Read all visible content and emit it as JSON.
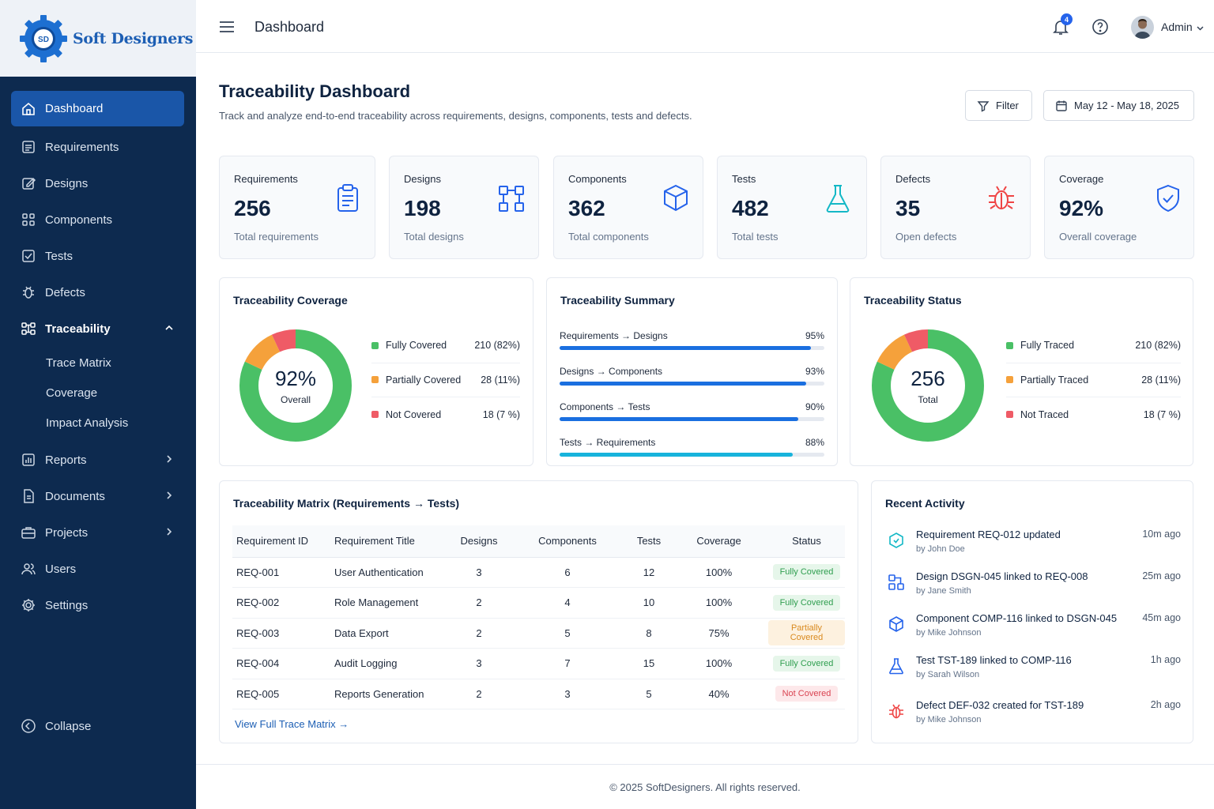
{
  "brand": {
    "name": "Soft Designers",
    "logo_text": "SD"
  },
  "sidebar": {
    "items": [
      {
        "label": "Dashboard",
        "icon": "home-icon"
      },
      {
        "label": "Requirements",
        "icon": "list-icon"
      },
      {
        "label": "Designs",
        "icon": "edit-icon"
      },
      {
        "label": "Components",
        "icon": "components-icon"
      },
      {
        "label": "Tests",
        "icon": "check-square-icon"
      },
      {
        "label": "Defects",
        "icon": "bug-icon"
      },
      {
        "label": "Traceability",
        "icon": "flow-icon"
      },
      {
        "label": "Reports",
        "icon": "chart-icon"
      },
      {
        "label": "Documents",
        "icon": "document-icon"
      },
      {
        "label": "Projects",
        "icon": "briefcase-icon"
      },
      {
        "label": "Users",
        "icon": "users-icon"
      },
      {
        "label": "Settings",
        "icon": "gear-icon"
      }
    ],
    "sub_items": [
      "Trace Matrix",
      "Coverage",
      "Impact Analysis"
    ],
    "collapse_label": "Collapse"
  },
  "topbar": {
    "title": "Dashboard",
    "notification_count": "4",
    "user_name": "Admin"
  },
  "page": {
    "title": "Traceability Dashboard",
    "subtitle": "Track and analyze end-to-end traceability across requirements, designs, components, tests and defects.",
    "filter_label": "Filter",
    "date_range": "May 12 - May 18, 2025"
  },
  "stats": [
    {
      "label": "Requirements",
      "value": "256",
      "sub": "Total requirements",
      "icon": "clipboard-icon",
      "color": "#2563eb"
    },
    {
      "label": "Designs",
      "value": "198",
      "sub": "Total designs",
      "icon": "design-flow-icon",
      "color": "#2563eb"
    },
    {
      "label": "Components",
      "value": "362",
      "sub": "Total components",
      "icon": "cube-icon",
      "color": "#2563eb"
    },
    {
      "label": "Tests",
      "value": "482",
      "sub": "Total tests",
      "icon": "flask-icon",
      "color": "#14b8c6"
    },
    {
      "label": "Defects",
      "value": "35",
      "sub": "Open defects",
      "icon": "bug-icon",
      "color": "#ef4444"
    },
    {
      "label": "Coverage",
      "value": "92%",
      "sub": "Overall coverage",
      "icon": "shield-check-icon",
      "color": "#2563eb"
    }
  ],
  "coverage": {
    "title": "Traceability Coverage",
    "center_value": "92%",
    "center_label": "Overall",
    "legend": [
      {
        "label": "Fully Covered",
        "value": "210 (82%)",
        "color": "#4ac066",
        "fraction": 0.82
      },
      {
        "label": "Partially Covered",
        "value": "28 (11%)",
        "color": "#f5a13b",
        "fraction": 0.11
      },
      {
        "label": "Not Covered",
        "value": "18 (7 %)",
        "color": "#ef5b66",
        "fraction": 0.07
      }
    ]
  },
  "summary": {
    "title": "Traceability Summary",
    "rows": [
      {
        "label": "Requirements → Designs",
        "value": "95%",
        "fraction": 0.95,
        "color": "#1a6fe0"
      },
      {
        "label": "Designs → Components",
        "value": "93%",
        "fraction": 0.93,
        "color": "#1a6fe0"
      },
      {
        "label": "Components → Tests",
        "value": "90%",
        "fraction": 0.9,
        "color": "#1a6fe0"
      },
      {
        "label": "Tests → Requirements",
        "value": "88%",
        "fraction": 0.88,
        "color": "#17b3dc"
      }
    ]
  },
  "status": {
    "title": "Traceability Status",
    "center_value": "256",
    "center_label": "Total",
    "legend": [
      {
        "label": "Fully Traced",
        "value": "210 (82%)",
        "color": "#4ac066",
        "fraction": 0.82
      },
      {
        "label": "Partially Traced",
        "value": "28 (11%)",
        "color": "#f5a13b",
        "fraction": 0.11
      },
      {
        "label": "Not Traced",
        "value": "18 (7 %)",
        "color": "#ef5b66",
        "fraction": 0.07
      }
    ]
  },
  "matrix": {
    "title": "Traceability Matrix (Requirements → Tests)",
    "columns": [
      "Requirement ID",
      "Requirement Title",
      "Designs",
      "Components",
      "Tests",
      "Coverage",
      "Status"
    ],
    "rows": [
      [
        "REQ-001",
        "User Authentication",
        "3",
        "6",
        "12",
        "100%",
        "Fully Covered"
      ],
      [
        "REQ-002",
        "Role Management",
        "2",
        "4",
        "10",
        "100%",
        "Fully Covered"
      ],
      [
        "REQ-003",
        "Data Export",
        "2",
        "5",
        "8",
        "75%",
        "Partially Covered"
      ],
      [
        "REQ-004",
        "Audit Logging",
        "3",
        "7",
        "15",
        "100%",
        "Fully Covered"
      ],
      [
        "REQ-005",
        "Reports Generation",
        "2",
        "3",
        "5",
        "40%",
        "Not Covered"
      ]
    ],
    "view_link": "View Full Trace Matrix →"
  },
  "activity": {
    "title": "Recent Activity",
    "items": [
      {
        "title": "Requirement REQ-012 updated",
        "by": "by John Doe",
        "time": "10m ago",
        "icon": "requirement-icon",
        "color": "#14b8c6"
      },
      {
        "title": "Design DSGN-045 linked to REQ-008",
        "by": "by Jane Smith",
        "time": "25m ago",
        "icon": "design-icon",
        "color": "#2563eb"
      },
      {
        "title": "Component COMP-116 linked to DSGN-045",
        "by": "by Mike Johnson",
        "time": "45m ago",
        "icon": "cube-icon",
        "color": "#2563eb"
      },
      {
        "title": "Test TST-189 linked to COMP-116",
        "by": "by Sarah Wilson",
        "time": "1h ago",
        "icon": "flask-icon",
        "color": "#2563eb"
      },
      {
        "title": "Defect DEF-032 created for TST-189",
        "by": "by Mike Johnson",
        "time": "2h ago",
        "icon": "bug-icon",
        "color": "#ef4444"
      }
    ]
  },
  "footer": {
    "text": "© 2025 SoftDesigners. All rights reserved."
  }
}
